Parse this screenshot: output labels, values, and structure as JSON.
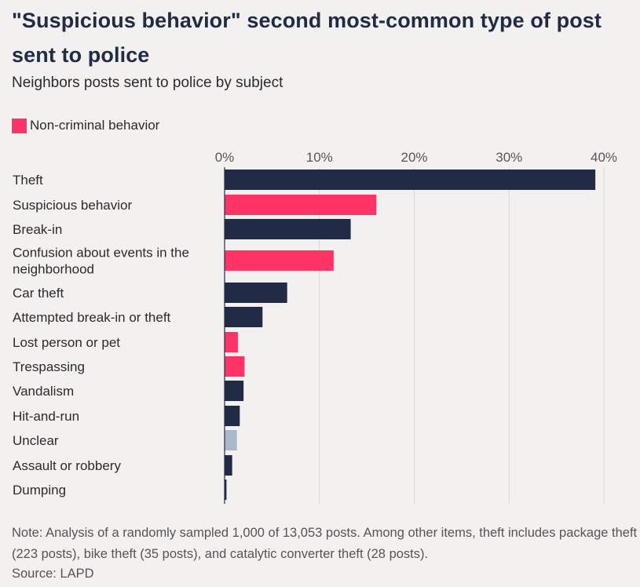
{
  "title": "\"Suspicious behavior\" second most-common type of post sent to police",
  "subtitle": "Neighbors posts sent to police by subject",
  "legend": {
    "label": "Non-criminal behavior",
    "color": "#ff3366"
  },
  "colors": {
    "criminal": "#222b45",
    "non_criminal": "#ff3366",
    "unclear": "#aab8cc",
    "grid": "#d8d6d6"
  },
  "chart_data": {
    "type": "bar",
    "orientation": "horizontal",
    "xlim": [
      0,
      40
    ],
    "xticks": [
      0,
      10,
      20,
      30,
      40
    ],
    "xtick_labels": [
      "0%",
      "10%",
      "20%",
      "30%",
      "40%"
    ],
    "grid": true,
    "legend_position": "top-left",
    "categories": [
      {
        "label": [
          "Theft"
        ],
        "value": 39.1,
        "group": "criminal"
      },
      {
        "label": [
          "Suspicious behavior"
        ],
        "value": 16.0,
        "group": "non_criminal"
      },
      {
        "label": [
          "Break-in"
        ],
        "value": 13.3,
        "group": "criminal"
      },
      {
        "label": [
          "Confusion about events in the",
          "neighborhood"
        ],
        "value": 11.5,
        "group": "non_criminal"
      },
      {
        "label": [
          "Car theft"
        ],
        "value": 6.6,
        "group": "criminal"
      },
      {
        "label": [
          "Attempted break-in or theft"
        ],
        "value": 4.0,
        "group": "criminal"
      },
      {
        "label": [
          "Lost person or pet"
        ],
        "value": 1.4,
        "group": "non_criminal"
      },
      {
        "label": [
          "Trespassing"
        ],
        "value": 2.1,
        "group": "non_criminal"
      },
      {
        "label": [
          "Vandalism"
        ],
        "value": 2.0,
        "group": "criminal"
      },
      {
        "label": [
          "Hit-and-run"
        ],
        "value": 1.6,
        "group": "criminal"
      },
      {
        "label": [
          "Unclear"
        ],
        "value": 1.3,
        "group": "unclear"
      },
      {
        "label": [
          "Assault or robbery"
        ],
        "value": 0.8,
        "group": "criminal"
      },
      {
        "label": [
          "Dumping"
        ],
        "value": 0.2,
        "group": "criminal"
      }
    ]
  },
  "note": "Note: Analysis of a randomly sampled 1,000 of 13,053 posts. Among other items, theft includes package theft (223 posts), bike theft (35 posts), and catalytic converter theft (28 posts).",
  "source": "Source: LAPD"
}
